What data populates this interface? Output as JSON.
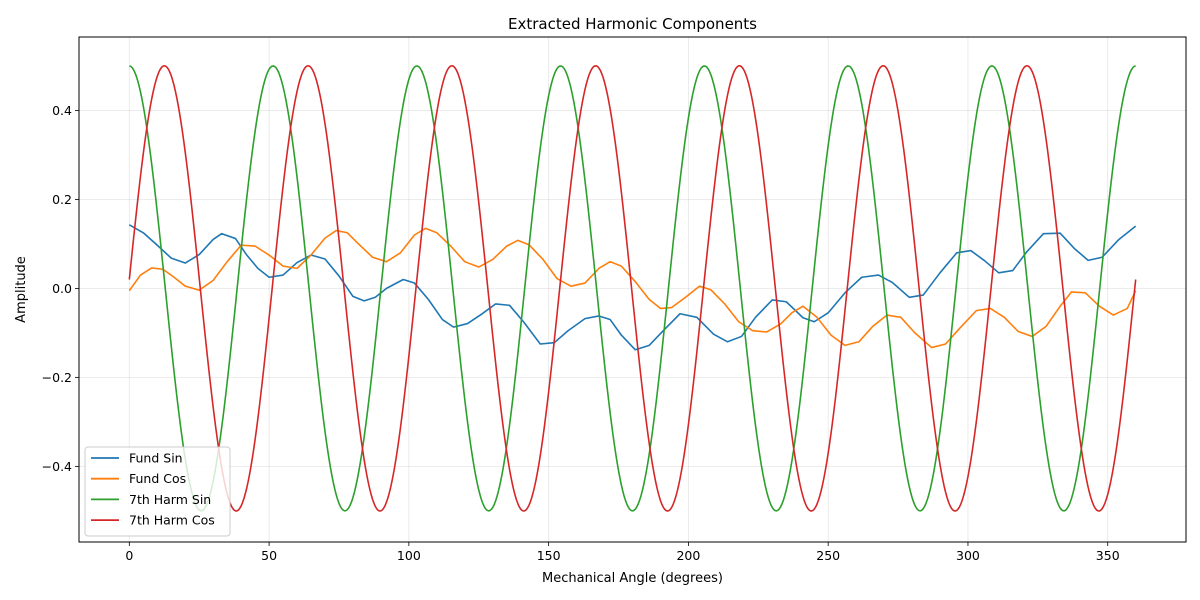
{
  "chart_data": {
    "type": "line",
    "title": "Extracted Harmonic Components",
    "xlabel": "Mechanical Angle (degrees)",
    "ylabel": "Amplitude",
    "xlim": [
      -18,
      378
    ],
    "ylim": [
      -0.57,
      0.565
    ],
    "xticks": [
      0,
      50,
      100,
      150,
      200,
      250,
      300,
      350
    ],
    "xtick_labels": [
      "0",
      "50",
      "100",
      "150",
      "200",
      "250",
      "300",
      "350"
    ],
    "yticks": [
      -0.4,
      -0.2,
      0.0,
      0.2,
      0.4
    ],
    "ytick_labels": [
      "−0.4",
      "−0.2",
      "0.0",
      "0.2",
      "0.4"
    ],
    "grid": true,
    "legend_position": "lower-left",
    "series": [
      {
        "name": "Fund Sin",
        "color": "#1f77b4",
        "x": [
          0,
          5,
          10,
          15,
          20,
          25,
          30,
          33,
          38,
          42,
          46,
          50,
          55,
          60,
          65,
          70,
          75,
          80,
          84,
          88,
          92,
          98,
          102,
          107,
          112,
          116,
          121,
          126,
          131,
          136,
          141,
          147,
          152,
          157,
          163,
          168,
          172,
          176,
          181,
          186,
          191,
          197,
          203,
          209,
          214,
          219,
          224,
          230,
          235,
          241,
          245,
          250,
          256,
          262,
          268,
          273,
          279,
          284,
          290,
          296,
          301,
          306,
          311,
          316,
          321,
          327,
          333,
          338,
          343,
          348,
          354,
          360
        ],
        "y": [
          0.143,
          0.125,
          0.097,
          0.068,
          0.057,
          0.076,
          0.11,
          0.123,
          0.112,
          0.075,
          0.045,
          0.025,
          0.03,
          0.058,
          0.075,
          0.066,
          0.028,
          -0.018,
          -0.028,
          -0.02,
          0.0,
          0.02,
          0.012,
          -0.025,
          -0.07,
          -0.087,
          -0.079,
          -0.058,
          -0.035,
          -0.038,
          -0.075,
          -0.125,
          -0.122,
          -0.095,
          -0.068,
          -0.062,
          -0.07,
          -0.105,
          -0.138,
          -0.128,
          -0.095,
          -0.057,
          -0.065,
          -0.103,
          -0.12,
          -0.108,
          -0.065,
          -0.026,
          -0.03,
          -0.066,
          -0.075,
          -0.055,
          -0.01,
          0.025,
          0.03,
          0.013,
          -0.02,
          -0.015,
          0.035,
          0.08,
          0.085,
          0.062,
          0.035,
          0.04,
          0.082,
          0.123,
          0.124,
          0.09,
          0.063,
          0.07,
          0.11,
          0.14
        ]
      },
      {
        "name": "Fund Cos",
        "color": "#ff7f0e",
        "x": [
          0,
          4,
          8,
          12,
          16,
          20,
          25,
          30,
          35,
          40,
          45,
          50,
          55,
          60,
          65,
          70,
          74,
          78,
          82,
          87,
          92,
          97,
          102,
          106,
          110,
          115,
          120,
          125,
          130,
          135,
          139,
          143,
          148,
          153,
          158,
          163,
          168,
          172,
          176,
          181,
          186,
          190,
          194,
          199,
          204,
          208,
          213,
          218,
          223,
          228,
          233,
          237,
          241,
          246,
          251,
          256,
          261,
          266,
          271,
          276,
          281,
          287,
          292,
          297,
          303,
          308,
          313,
          318,
          323,
          328,
          333,
          337,
          342,
          347,
          352,
          357,
          360
        ],
        "y": [
          -0.005,
          0.03,
          0.046,
          0.043,
          0.025,
          0.005,
          -0.004,
          0.018,
          0.06,
          0.097,
          0.095,
          0.075,
          0.05,
          0.045,
          0.075,
          0.113,
          0.13,
          0.125,
          0.1,
          0.07,
          0.06,
          0.08,
          0.12,
          0.135,
          0.125,
          0.095,
          0.06,
          0.048,
          0.065,
          0.095,
          0.108,
          0.098,
          0.065,
          0.022,
          0.005,
          0.012,
          0.045,
          0.06,
          0.05,
          0.015,
          -0.025,
          -0.045,
          -0.043,
          -0.02,
          0.005,
          -0.003,
          -0.035,
          -0.075,
          -0.095,
          -0.098,
          -0.08,
          -0.055,
          -0.04,
          -0.065,
          -0.105,
          -0.128,
          -0.12,
          -0.085,
          -0.06,
          -0.065,
          -0.1,
          -0.133,
          -0.125,
          -0.09,
          -0.05,
          -0.045,
          -0.065,
          -0.097,
          -0.108,
          -0.085,
          -0.04,
          -0.008,
          -0.01,
          -0.04,
          -0.06,
          -0.045,
          -0.005
        ]
      },
      {
        "name": "7th Harm Sin",
        "type": "sinusoid",
        "color": "#2ca02c",
        "amplitude": 0.5,
        "harmonic": 7,
        "phase": "cos",
        "x_range": [
          0,
          360
        ]
      },
      {
        "name": "7th Harm Cos",
        "type": "sinusoid",
        "color": "#d62728",
        "amplitude": 0.5,
        "harmonic": 7,
        "phase": "sin",
        "offset": 0.02,
        "x_range": [
          0,
          360
        ]
      }
    ]
  }
}
